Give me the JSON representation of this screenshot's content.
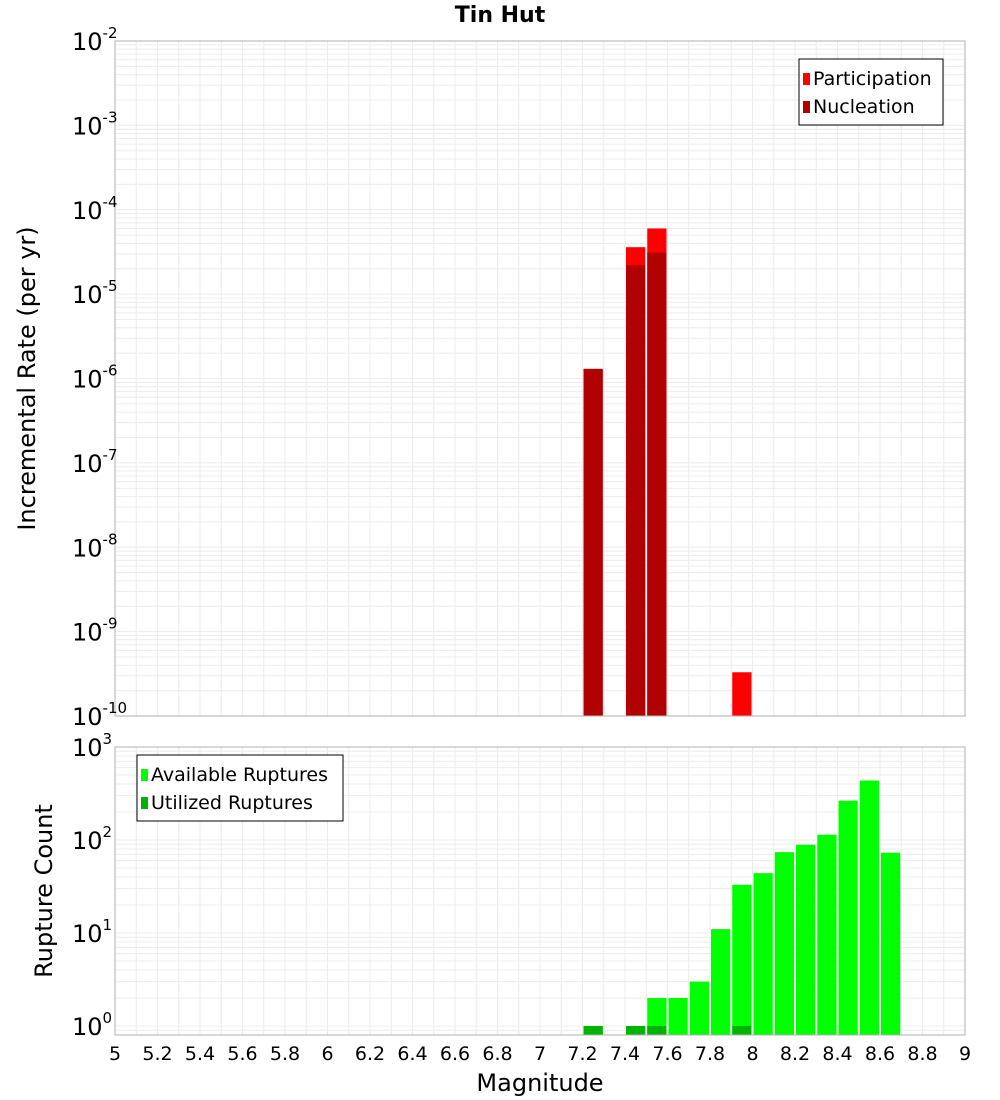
{
  "chart_data": {
    "title": "Tin Hut",
    "xlabel": "Magnitude",
    "x_ticks": [
      "5",
      "5.2",
      "5.4",
      "5.6",
      "5.8",
      "6",
      "6.2",
      "6.4",
      "6.6",
      "6.8",
      "7",
      "7.2",
      "7.4",
      "7.6",
      "7.8",
      "8",
      "8.2",
      "8.4",
      "8.6",
      "8.8",
      "9"
    ],
    "xlim": [
      5,
      9
    ],
    "bin_width": 0.1,
    "panels": [
      {
        "type": "bar",
        "scale": "log",
        "ylabel": "Incremental Rate (per yr)",
        "ylim": [
          1e-10,
          0.01
        ],
        "y_tick_exponents": [
          -2,
          -3,
          -4,
          -5,
          -6,
          -7,
          -8,
          -9,
          -10
        ],
        "grid": true,
        "legend_position": "top-right",
        "series": [
          {
            "name": "Participation",
            "color": "#ff0000",
            "points": [
              {
                "x": 7.25,
                "y": 1.3e-06
              },
              {
                "x": 7.45,
                "y": 3.6e-05
              },
              {
                "x": 7.55,
                "y": 6e-05
              },
              {
                "x": 7.95,
                "y": 3.3e-10
              }
            ]
          },
          {
            "name": "Nucleation",
            "color": "#b00000",
            "points": [
              {
                "x": 7.25,
                "y": 1.3e-06
              },
              {
                "x": 7.45,
                "y": 2.2e-05
              },
              {
                "x": 7.55,
                "y": 3.1e-05
              }
            ]
          }
        ]
      },
      {
        "type": "bar",
        "scale": "log",
        "ylabel": "Rupture Count",
        "ylim": [
          0.8,
          1000
        ],
        "y_tick_exponents": [
          3,
          2,
          1,
          0
        ],
        "grid": true,
        "legend_position": "top-left",
        "series": [
          {
            "name": "Available Ruptures",
            "color": "#00ff00",
            "points": [
              {
                "x": 7.25,
                "y": 1
              },
              {
                "x": 7.45,
                "y": 1
              },
              {
                "x": 7.55,
                "y": 2
              },
              {
                "x": 7.65,
                "y": 2
              },
              {
                "x": 7.75,
                "y": 3
              },
              {
                "x": 7.85,
                "y": 11
              },
              {
                "x": 7.95,
                "y": 33
              },
              {
                "x": 8.05,
                "y": 44
              },
              {
                "x": 8.15,
                "y": 74
              },
              {
                "x": 8.25,
                "y": 89
              },
              {
                "x": 8.35,
                "y": 114
              },
              {
                "x": 8.45,
                "y": 265
              },
              {
                "x": 8.55,
                "y": 436
              },
              {
                "x": 8.65,
                "y": 73
              }
            ]
          },
          {
            "name": "Utilized Ruptures",
            "color": "#00b300",
            "points": [
              {
                "x": 7.25,
                "y": 1
              },
              {
                "x": 7.45,
                "y": 1
              },
              {
                "x": 7.55,
                "y": 1
              },
              {
                "x": 7.95,
                "y": 1
              }
            ]
          }
        ]
      }
    ]
  },
  "colors": {
    "grid": "#ececec",
    "frame": "#b0b0b0",
    "legend_border": "#000000"
  }
}
